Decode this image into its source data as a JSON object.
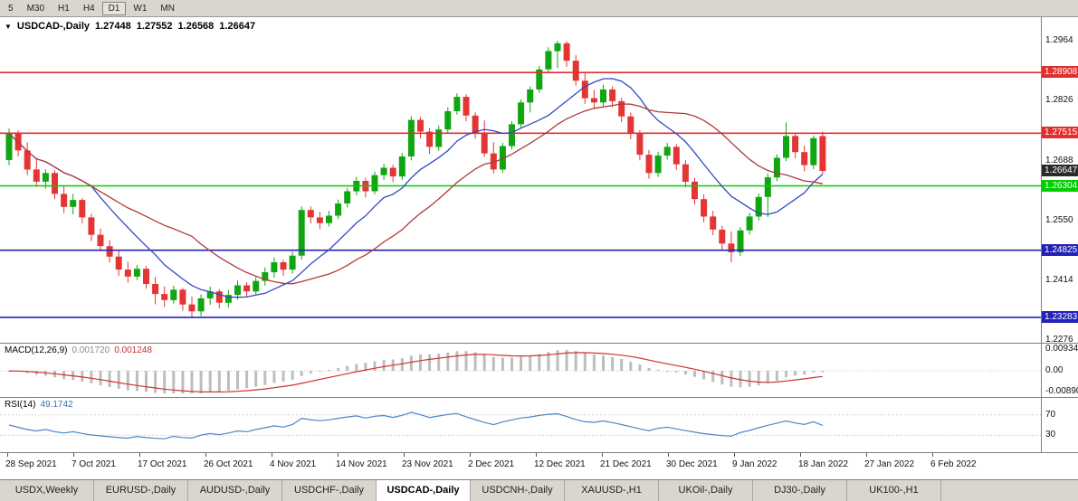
{
  "toolbar": {
    "timeframes": [
      "5",
      "M30",
      "H1",
      "H4",
      "D1",
      "W1",
      "MN"
    ],
    "active": "D1"
  },
  "chart_header": {
    "collapse_icon": "▼",
    "symbol": "USDCAD-,Daily",
    "open": "1.27448",
    "high": "1.27552",
    "low": "1.26568",
    "close": "1.26647"
  },
  "indicators": {
    "macd": {
      "label": "MACD(12,26,9)",
      "main_value": "0.001720",
      "signal_value": "0.001248"
    },
    "rsi": {
      "label": "RSI(14)",
      "value": "49.1742"
    }
  },
  "price_axis": {
    "labels": [
      "1.2964",
      "1.2826",
      "1.2688",
      "1.2550",
      "1.2414",
      "1.2276"
    ]
  },
  "time_axis": {
    "labels": [
      "28 Sep 2021",
      "7 Oct 2021",
      "17 Oct 2021",
      "26 Oct 2021",
      "4 Nov 2021",
      "14 Nov 2021",
      "23 Nov 2021",
      "2 Dec 2021",
      "12 Dec 2021",
      "21 Dec 2021",
      "30 Dec 2021",
      "9 Jan 2022",
      "18 Jan 2022",
      "27 Jan 2022",
      "6 Feb 2022"
    ]
  },
  "tabs": {
    "items": [
      "USDX,Weekly",
      "EURUSD-,Daily",
      "AUDUSD-,Daily",
      "USDCHF-,Daily",
      "USDCAD-,Daily",
      "USDCNH-,Daily",
      "XAUUSD-,H1",
      "UKOil-,Daily",
      "DJ30-,Daily",
      "UK100-,H1"
    ],
    "active_index": 4
  },
  "chart_data": {
    "type": "candlestick",
    "symbol": "USDCAD",
    "timeframe": "Daily",
    "price_range": {
      "top": 1.3018,
      "bottom": 1.227
    },
    "up_color": "#0fa611",
    "down_color": "#e43535",
    "levels": [
      {
        "price": 1.28908,
        "label": "1.28908",
        "color": "#e12f2f"
      },
      {
        "price": 1.27515,
        "label": "1.27515",
        "color": "#e12f2f"
      },
      {
        "price": 1.26304,
        "label": "1.26304",
        "color": "#00ce00"
      },
      {
        "price": 1.24825,
        "label": "1.24825",
        "color": "#2222b8"
      },
      {
        "price": 1.23283,
        "label": "1.23283",
        "color": "#2222b8"
      }
    ],
    "current_price": {
      "value": 1.26647,
      "label": "1.26647",
      "color": "#2a2a2a"
    },
    "moving_averages": [
      {
        "period": 10,
        "color": "#2f49c2"
      },
      {
        "period": 21,
        "color": "#b03a3a"
      }
    ],
    "macd": {
      "fast": 12,
      "slow": 26,
      "signal": 9,
      "hist_color": "#bdbdbd",
      "signal_color": "#cd3333",
      "axis_labels": [
        {
          "text": "0.009345",
          "value": 0.009345
        },
        {
          "text": "0.00",
          "value": 0
        },
        {
          "text": "-0.00890",
          "value": -0.0089
        }
      ]
    },
    "rsi": {
      "period": 14,
      "color": "#4e86c6",
      "levels": [
        {
          "text": "70",
          "value": 70
        },
        {
          "text": "30",
          "value": 30
        }
      ]
    },
    "candles": [
      [
        1.269,
        1.2762,
        1.2678,
        1.275
      ],
      [
        1.275,
        1.2758,
        1.2698,
        1.2712
      ],
      [
        1.2712,
        1.273,
        1.2655,
        1.2668
      ],
      [
        1.2668,
        1.2695,
        1.2628,
        1.264
      ],
      [
        1.264,
        1.2668,
        1.2624,
        1.266
      ],
      [
        1.266,
        1.2666,
        1.26,
        1.2612
      ],
      [
        1.2612,
        1.263,
        1.2568,
        1.2582
      ],
      [
        1.2582,
        1.2612,
        1.2565,
        1.2598
      ],
      [
        1.2598,
        1.2602,
        1.2544,
        1.2558
      ],
      [
        1.2558,
        1.2566,
        1.2504,
        1.2518
      ],
      [
        1.2518,
        1.2532,
        1.248,
        1.2492
      ],
      [
        1.2492,
        1.2506,
        1.2454,
        1.2468
      ],
      [
        1.2468,
        1.2481,
        1.2424,
        1.2438
      ],
      [
        1.2438,
        1.2456,
        1.2408,
        1.2422
      ],
      [
        1.2422,
        1.2449,
        1.2414,
        1.244
      ],
      [
        1.244,
        1.2446,
        1.2394,
        1.2405
      ],
      [
        1.2405,
        1.2421,
        1.2358,
        1.2382
      ],
      [
        1.2382,
        1.2399,
        1.2352,
        1.2368
      ],
      [
        1.2368,
        1.2401,
        1.236,
        1.2392
      ],
      [
        1.2392,
        1.2396,
        1.2344,
        1.2358
      ],
      [
        1.2358,
        1.2376,
        1.2328,
        1.2342
      ],
      [
        1.2342,
        1.2381,
        1.2331,
        1.2372
      ],
      [
        1.2372,
        1.2399,
        1.2357,
        1.2388
      ],
      [
        1.2388,
        1.2393,
        1.2349,
        1.2362
      ],
      [
        1.2362,
        1.2391,
        1.2351,
        1.238
      ],
      [
        1.238,
        1.2413,
        1.2369,
        1.2402
      ],
      [
        1.2402,
        1.2409,
        1.2374,
        1.2388
      ],
      [
        1.2388,
        1.2421,
        1.2379,
        1.2412
      ],
      [
        1.2412,
        1.2443,
        1.2401,
        1.2432
      ],
      [
        1.2432,
        1.2466,
        1.2419,
        1.2455
      ],
      [
        1.2455,
        1.2461,
        1.2424,
        1.2438
      ],
      [
        1.2438,
        1.2479,
        1.2429,
        1.247
      ],
      [
        1.247,
        1.2583,
        1.2461,
        1.2575
      ],
      [
        1.2575,
        1.2583,
        1.2544,
        1.2558
      ],
      [
        1.2558,
        1.2571,
        1.2531,
        1.2545
      ],
      [
        1.2545,
        1.2573,
        1.2537,
        1.2562
      ],
      [
        1.2562,
        1.2599,
        1.2554,
        1.259
      ],
      [
        1.259,
        1.2626,
        1.2581,
        1.2618
      ],
      [
        1.2618,
        1.2651,
        1.2609,
        1.2642
      ],
      [
        1.2642,
        1.2649,
        1.2604,
        1.2618
      ],
      [
        1.2618,
        1.2663,
        1.2611,
        1.2655
      ],
      [
        1.2655,
        1.2681,
        1.2644,
        1.2672
      ],
      [
        1.2672,
        1.2679,
        1.2639,
        1.2652
      ],
      [
        1.2652,
        1.2706,
        1.2644,
        1.2698
      ],
      [
        1.2698,
        1.2791,
        1.2689,
        1.2782
      ],
      [
        1.2782,
        1.2789,
        1.2739,
        1.2755
      ],
      [
        1.2755,
        1.2763,
        1.2704,
        1.272
      ],
      [
        1.272,
        1.2769,
        1.2711,
        1.276
      ],
      [
        1.276,
        1.2811,
        1.2751,
        1.2802
      ],
      [
        1.2802,
        1.2843,
        1.2794,
        1.2835
      ],
      [
        1.2835,
        1.2841,
        1.2779,
        1.2792
      ],
      [
        1.2792,
        1.2799,
        1.2739,
        1.2752
      ],
      [
        1.2752,
        1.2781,
        1.2697,
        1.2705
      ],
      [
        1.2705,
        1.2731,
        1.2659,
        1.2668
      ],
      [
        1.2668,
        1.2729,
        1.2661,
        1.2722
      ],
      [
        1.2722,
        1.2779,
        1.2714,
        1.2772
      ],
      [
        1.2772,
        1.2829,
        1.2764,
        1.2822
      ],
      [
        1.2822,
        1.2859,
        1.2799,
        1.2852
      ],
      [
        1.2852,
        1.2906,
        1.2844,
        1.2898
      ],
      [
        1.2898,
        1.2949,
        1.2889,
        1.294
      ],
      [
        1.294,
        1.2964,
        1.2901,
        1.2958
      ],
      [
        1.2958,
        1.2963,
        1.2904,
        1.2918
      ],
      [
        1.2918,
        1.2931,
        1.2861,
        1.2872
      ],
      [
        1.2872,
        1.2891,
        1.2819,
        1.2832
      ],
      [
        1.2832,
        1.2851,
        1.2807,
        1.2822
      ],
      [
        1.2822,
        1.2863,
        1.2814,
        1.2852
      ],
      [
        1.2852,
        1.2859,
        1.2811,
        1.2825
      ],
      [
        1.2825,
        1.2833,
        1.2777,
        1.279
      ],
      [
        1.279,
        1.2799,
        1.2737,
        1.275
      ],
      [
        1.275,
        1.2759,
        1.2689,
        1.2702
      ],
      [
        1.2702,
        1.2713,
        1.2647,
        1.266
      ],
      [
        1.266,
        1.2709,
        1.2651,
        1.27
      ],
      [
        1.27,
        1.2729,
        1.2691,
        1.272
      ],
      [
        1.272,
        1.2726,
        1.2667,
        1.268
      ],
      [
        1.268,
        1.2689,
        1.2627,
        1.264
      ],
      [
        1.264,
        1.2649,
        1.2587,
        1.26
      ],
      [
        1.26,
        1.2611,
        1.2547,
        1.256
      ],
      [
        1.256,
        1.2573,
        1.2517,
        1.253
      ],
      [
        1.253,
        1.2539,
        1.2481,
        1.2498
      ],
      [
        1.2498,
        1.2526,
        1.2455,
        1.2478
      ],
      [
        1.2478,
        1.2536,
        1.2469,
        1.2528
      ],
      [
        1.2528,
        1.2569,
        1.2519,
        1.256
      ],
      [
        1.256,
        1.2613,
        1.2551,
        1.2605
      ],
      [
        1.2605,
        1.2659,
        1.2559,
        1.265
      ],
      [
        1.265,
        1.2703,
        1.2641,
        1.2695
      ],
      [
        1.2695,
        1.2776,
        1.2687,
        1.2745
      ],
      [
        1.2745,
        1.2751,
        1.2694,
        1.2708
      ],
      [
        1.2708,
        1.2723,
        1.2664,
        1.2678
      ],
      [
        1.2678,
        1.2746,
        1.2669,
        1.274
      ],
      [
        1.27448,
        1.27552,
        1.26568,
        1.26647
      ]
    ]
  }
}
